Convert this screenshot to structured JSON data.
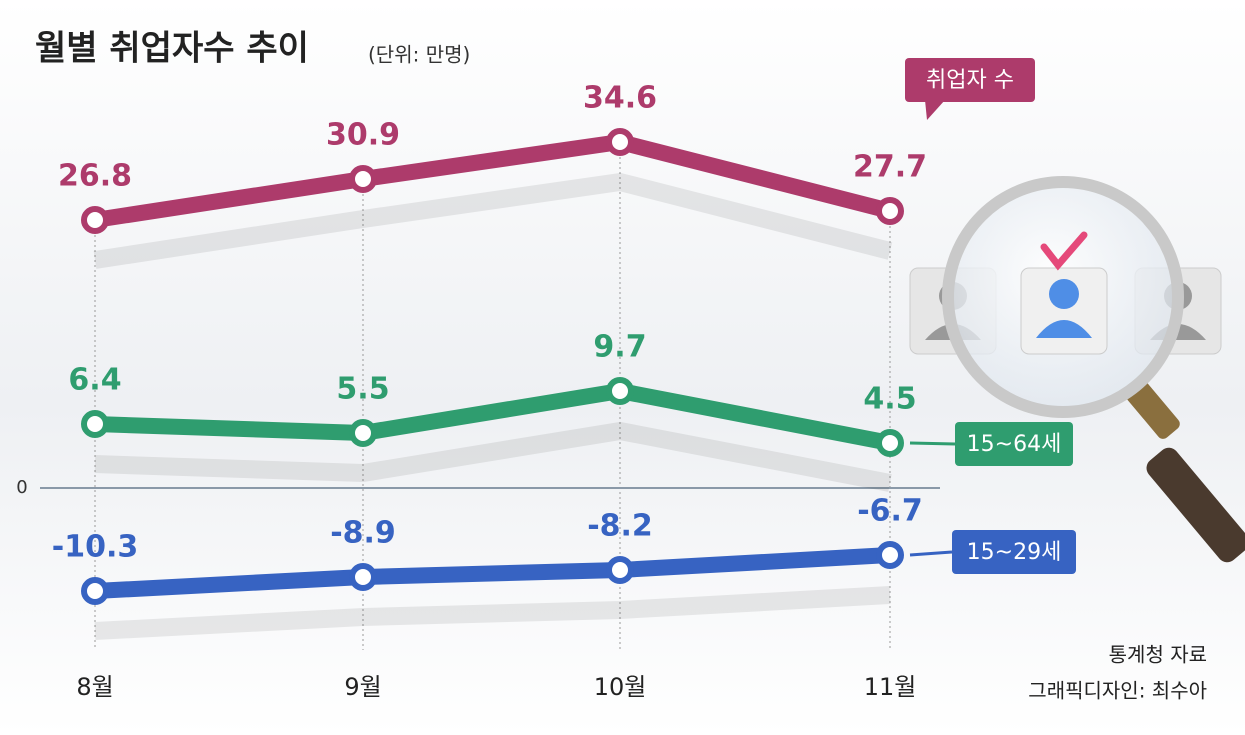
{
  "chart_data": {
    "type": "line",
    "title": "월별 취업자수 추이",
    "subtitle": "(단위: 만명)",
    "categories": [
      "8월",
      "9월",
      "10월",
      "11월"
    ],
    "series": [
      {
        "name": "취업자 수",
        "color": "#ad3b6b",
        "values": [
          26.8,
          30.9,
          34.6,
          27.7
        ]
      },
      {
        "name": "15~64세",
        "color": "#2f9d6f",
        "values": [
          6.4,
          5.5,
          9.7,
          4.5
        ]
      },
      {
        "name": "15~29세",
        "color": "#3763c2",
        "values": [
          -10.3,
          -8.9,
          -8.2,
          -6.7
        ]
      }
    ],
    "ylim": [
      -15,
      40
    ],
    "yticks": [
      0
    ],
    "source": "통계청 자료",
    "credit": "그래픽디자인: 최수아"
  }
}
